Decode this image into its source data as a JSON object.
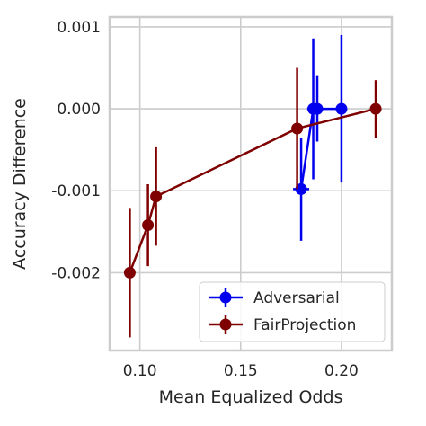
{
  "chart_data": {
    "type": "scatter",
    "title": "",
    "xlabel": "Mean Equalized Odds",
    "ylabel": "Accuracy Difference",
    "xlim": [
      0.085,
      0.225
    ],
    "ylim": [
      -0.00295,
      0.00112
    ],
    "x_ticks": [
      0.1,
      0.15,
      0.2
    ],
    "x_tick_labels": [
      "0.10",
      "0.15",
      "0.20"
    ],
    "y_ticks": [
      0.001,
      0.0,
      -0.001,
      -0.002
    ],
    "y_tick_labels": [
      "0.001",
      "0.000",
      "-0.001",
      "-0.002"
    ],
    "grid": true,
    "legend": {
      "placement": "lower-right"
    },
    "series": [
      {
        "name": "Adversarial",
        "color": "#0000ee",
        "points": [
          {
            "x": 0.18,
            "y": -0.00098,
            "xerr": 0.004,
            "yerr": 0.00063
          },
          {
            "x": 0.186,
            "y": 0.0,
            "xerr": 0.003,
            "yerr": 0.00086
          },
          {
            "x": 0.188,
            "y": 0.0,
            "xerr": 0.001,
            "yerr": 0.0004
          },
          {
            "x": 0.2,
            "y": 0.0,
            "xerr": 0.001,
            "yerr": 0.0009
          }
        ]
      },
      {
        "name": "FairProjection",
        "color": "#7f0000",
        "points": [
          {
            "x": 0.095,
            "y": -0.002,
            "xerr": 0.001,
            "yerr": 0.00079
          },
          {
            "x": 0.104,
            "y": -0.00142,
            "xerr": 0.001,
            "yerr": 0.0005
          },
          {
            "x": 0.108,
            "y": -0.00107,
            "xerr": 0.001,
            "yerr": 0.0006
          },
          {
            "x": 0.178,
            "y": -0.00024,
            "xerr": 0.0,
            "yerr": 0.00074
          },
          {
            "x": 0.217,
            "y": 0.0,
            "xerr": 0.0,
            "yerr": 0.00035
          }
        ]
      }
    ]
  }
}
